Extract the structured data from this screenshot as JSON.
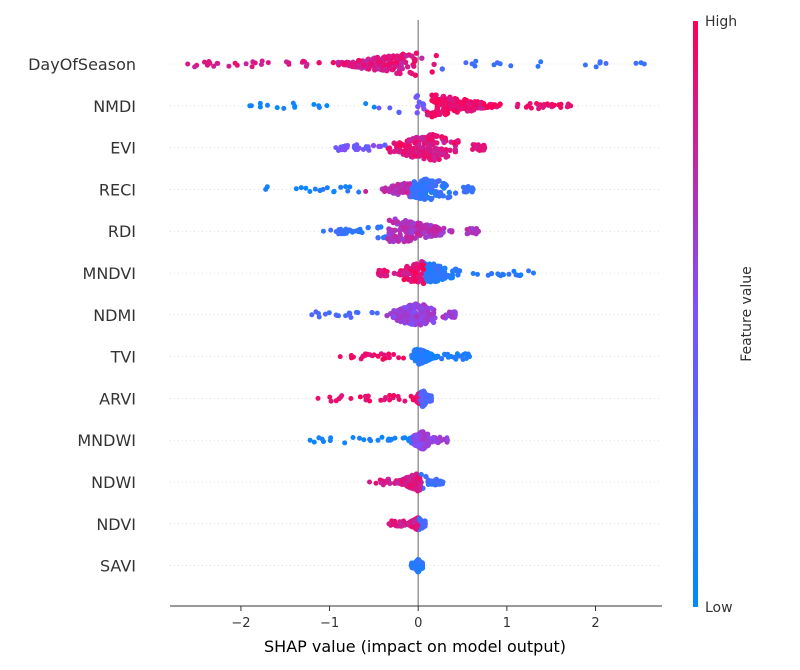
{
  "chart_data": {
    "type": "scatter",
    "subtype": "shap-beeswarm",
    "xlabel": "SHAP value (impact on model output)",
    "xlim": [
      -2.8,
      2.75
    ],
    "xticks": [
      -2,
      -1,
      0,
      1,
      2
    ],
    "xtick_labels": [
      "−2",
      "−1",
      "0",
      "1",
      "2"
    ],
    "zero_line": true,
    "grid": false,
    "colorbar": {
      "title": "Feature value",
      "high_label": "High",
      "low_label": "Low",
      "placement": "right",
      "low_color": "#008bfb",
      "mid_color": "#7c52ff",
      "high_color": "#ff0052"
    },
    "features": [
      {
        "name": "DayOfSeason",
        "x_min": -2.6,
        "x_max": 2.55,
        "core_min": -1.25,
        "core_max": 0.35,
        "core_half_width": 0.75,
        "center": 0.05
      },
      {
        "name": "NMDI",
        "x_min": -1.9,
        "x_max": 1.72,
        "core_min": -0.25,
        "core_max": 1.1,
        "core_half_width": 0.7,
        "center": 0.1
      },
      {
        "name": "EVI",
        "x_min": -0.93,
        "x_max": 0.75,
        "core_min": -0.55,
        "core_max": 0.6,
        "core_half_width": 0.75,
        "center": 0.15
      },
      {
        "name": "RECI",
        "x_min": -1.72,
        "x_max": 0.62,
        "core_min": -0.55,
        "core_max": 0.5,
        "core_half_width": 0.65,
        "center": 0.15
      },
      {
        "name": "RDI",
        "x_min": -1.07,
        "x_max": 0.68,
        "core_min": -0.6,
        "core_max": 0.55,
        "core_half_width": 0.7,
        "center": -0.25
      },
      {
        "name": "MNDVI",
        "x_min": -0.45,
        "x_max": 1.3,
        "core_min": -0.35,
        "core_max": 0.55,
        "core_half_width": 0.65,
        "center": 0.05
      },
      {
        "name": "NDMI",
        "x_min": -1.2,
        "x_max": 0.42,
        "core_min": -0.45,
        "core_max": 0.35,
        "core_half_width": 0.65,
        "center": 0.0
      },
      {
        "name": "TVI",
        "x_min": -0.88,
        "x_max": 0.58,
        "core_min": -0.1,
        "core_max": 0.25,
        "core_half_width": 0.45,
        "center": 0.0
      },
      {
        "name": "ARVI",
        "x_min": -1.13,
        "x_max": 0.15,
        "core_min": -0.05,
        "core_max": 0.12,
        "core_half_width": 0.45,
        "center": 0.05
      },
      {
        "name": "MNDWI",
        "x_min": -1.22,
        "x_max": 0.33,
        "core_min": -0.15,
        "core_max": 0.15,
        "core_half_width": 0.5,
        "center": 0.05
      },
      {
        "name": "NDWI",
        "x_min": -0.55,
        "x_max": 0.28,
        "core_min": -0.3,
        "core_max": 0.1,
        "core_half_width": 0.5,
        "center": 0.0
      },
      {
        "name": "NDVI",
        "x_min": -0.33,
        "x_max": 0.08,
        "core_min": -0.15,
        "core_max": 0.06,
        "core_half_width": 0.35,
        "center": 0.0
      },
      {
        "name": "SAVI",
        "x_min": -0.08,
        "x_max": 0.05,
        "core_min": -0.05,
        "core_max": 0.04,
        "core_half_width": 0.35,
        "center": 0.0
      }
    ]
  }
}
